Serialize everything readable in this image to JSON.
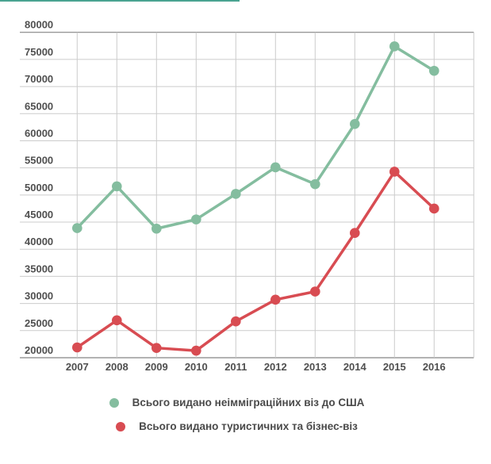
{
  "page": {
    "accent_bar_color": "#4aa391",
    "background": "#ffffff"
  },
  "chart_data": {
    "type": "line",
    "x": [
      "2007",
      "2008",
      "2009",
      "2010",
      "2011",
      "2012",
      "2013",
      "2014",
      "2015",
      "2016"
    ],
    "series": [
      {
        "name": "Всього видано неімміграційних віз до США",
        "color": "#84bd9f",
        "values": [
          43900,
          51600,
          43800,
          45500,
          50200,
          55100,
          52000,
          63100,
          77400,
          72900
        ]
      },
      {
        "name": "Всього видано туристичних та бізнес-віз",
        "color": "#d84c52",
        "values": [
          21900,
          26900,
          21800,
          21300,
          26700,
          30700,
          32200,
          43000,
          54300,
          47500
        ]
      }
    ],
    "ylim": [
      20000,
      80000
    ],
    "ytick_step": 5000,
    "ytick_labels": [
      "80000",
      "75000",
      "70000",
      "65000",
      "60000",
      "55000",
      "50000",
      "45000",
      "40000",
      "35000",
      "30000",
      "25000",
      "20000"
    ],
    "grid": true,
    "legend_position": "bottom",
    "title": "",
    "xlabel": "",
    "ylabel": "",
    "styles": {
      "grid_color": "#cccccc",
      "frame_color": "#999999",
      "tick_label_color": "#4f4f4f",
      "marker_radius": 6.3,
      "line_width": 3.5
    }
  }
}
